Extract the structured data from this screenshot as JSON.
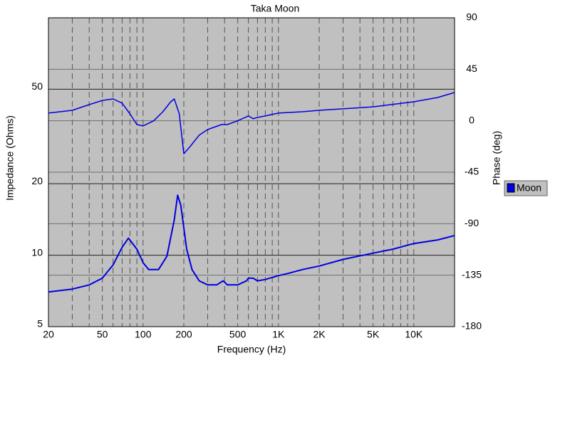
{
  "chart_data": {
    "type": "line",
    "title": "Taka Moon",
    "x_label": "Frequency (Hz)",
    "y_label": "Impedance (Ohms)",
    "y2_label": "Phase (deg)",
    "xlog": true,
    "ylog": true,
    "grid": true,
    "legend": "right",
    "legend_entry": "Moon",
    "xlim": [
      20,
      20000
    ],
    "xticks": [
      20,
      50,
      100,
      200,
      500,
      {
        "value": 1000,
        "label": "1K"
      },
      {
        "value": 2000,
        "label": "2K"
      },
      {
        "value": 5000,
        "label": "5K"
      },
      {
        "value": 10000,
        "label": "10K"
      }
    ],
    "xminorticks": [
      30,
      40,
      60,
      70,
      80,
      90,
      300,
      400,
      600,
      700,
      800,
      900,
      3000,
      4000,
      6000,
      7000,
      8000,
      9000
    ],
    "ylim": [
      5,
      100
    ],
    "yticks": [
      5,
      10,
      20,
      50
    ],
    "y2lim": [
      -180,
      90
    ],
    "y2ticks": [
      90,
      45,
      0,
      -45,
      -90,
      -135,
      -180
    ],
    "series": [
      {
        "name": "Moon",
        "color": "#0000e0",
        "x": [
          20,
          30,
          40,
          50,
          60,
          70,
          78,
          90,
          100,
          110,
          130,
          150,
          170,
          180,
          190,
          210,
          230,
          260,
          300,
          350,
          390,
          420,
          500,
          580,
          600,
          650,
          700,
          800,
          1000,
          1200,
          1500,
          2000,
          3000,
          5000,
          7000,
          10000,
          15000,
          20000
        ],
        "values": [
          7.0,
          7.2,
          7.5,
          8.0,
          9.1,
          10.8,
          11.8,
          10.6,
          9.3,
          8.7,
          8.7,
          9.9,
          14.1,
          17.9,
          16.2,
          10.6,
          8.7,
          7.8,
          7.5,
          7.5,
          7.8,
          7.5,
          7.5,
          7.8,
          8.0,
          8.0,
          7.8,
          7.9,
          8.2,
          8.4,
          8.7,
          9.0,
          9.6,
          10.2,
          10.6,
          11.2,
          11.6,
          12.1
        ]
      },
      {
        "color": "#0000e0",
        "axis": "y2",
        "x": [
          20,
          30,
          40,
          50,
          60,
          70,
          80,
          90,
          100,
          120,
          140,
          160,
          170,
          185,
          200,
          220,
          260,
          300,
          380,
          420,
          500,
          600,
          650,
          700,
          800,
          1000,
          1500,
          2000,
          3000,
          5000,
          10000,
          15000,
          20000
        ],
        "values": [
          6.7,
          9.1,
          14.1,
          17.8,
          19.1,
          15.4,
          6,
          -3.3,
          -4.5,
          0,
          7.9,
          16.6,
          19.1,
          6,
          -28.8,
          -23.2,
          -12.6,
          -7.7,
          -3.3,
          -3.3,
          0,
          4.2,
          1.7,
          2.9,
          4.2,
          6.7,
          7.9,
          9.1,
          10.4,
          12.2,
          16.6,
          20.3,
          24.7
        ]
      }
    ]
  }
}
